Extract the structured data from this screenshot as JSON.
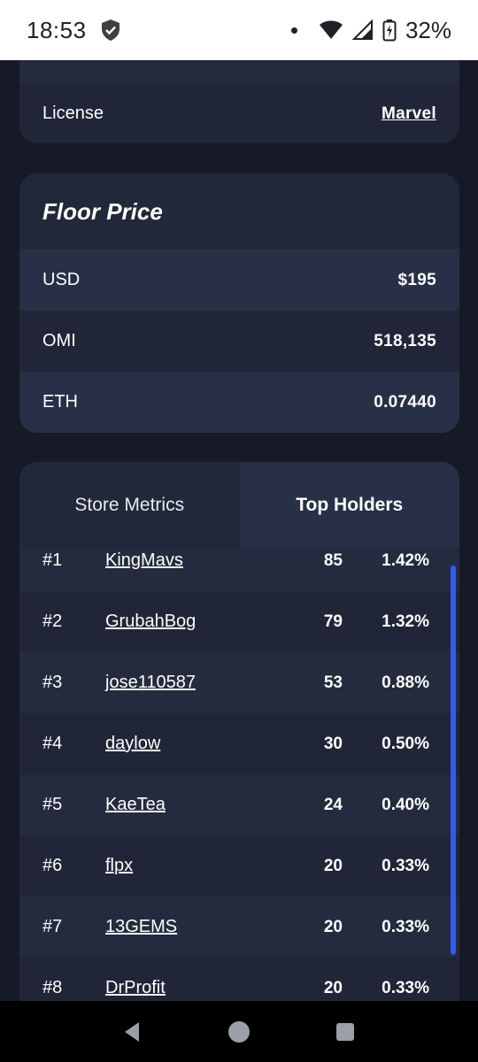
{
  "status_bar": {
    "time": "18:53",
    "battery": "32%"
  },
  "license": {
    "label": "License",
    "value": "Marvel"
  },
  "floor_price": {
    "title": "Floor Price",
    "rows": [
      {
        "label": "USD",
        "value": "$195"
      },
      {
        "label": "OMI",
        "value": "518,135"
      },
      {
        "label": "ETH",
        "value": "0.07440"
      }
    ]
  },
  "tabs": {
    "store_metrics": "Store Metrics",
    "top_holders": "Top Holders"
  },
  "holders": [
    {
      "rank": "#1",
      "name": "KingMavs",
      "count": "85",
      "pct": "1.42%"
    },
    {
      "rank": "#2",
      "name": "GrubahBog",
      "count": "79",
      "pct": "1.32%"
    },
    {
      "rank": "#3",
      "name": "jose110587",
      "count": "53",
      "pct": "0.88%"
    },
    {
      "rank": "#4",
      "name": "daylow",
      "count": "30",
      "pct": "0.50%"
    },
    {
      "rank": "#5",
      "name": "KaeTea",
      "count": "24",
      "pct": "0.40%"
    },
    {
      "rank": "#6",
      "name": "flpx",
      "count": "20",
      "pct": "0.33%"
    },
    {
      "rank": "#7",
      "name": "13GEMS",
      "count": "20",
      "pct": "0.33%"
    },
    {
      "rank": "#8",
      "name": "DrProfit",
      "count": "20",
      "pct": "0.33%"
    }
  ],
  "colors": {
    "background": "#161a26",
    "card": "#242b3e",
    "accent_scrollbar": "#2f5bf0"
  },
  "icons": {
    "status": [
      "shield-icon",
      "wifi-icon",
      "signal-icon",
      "battery-icon"
    ],
    "nav": [
      "back-icon",
      "home-icon",
      "recents-icon"
    ]
  }
}
